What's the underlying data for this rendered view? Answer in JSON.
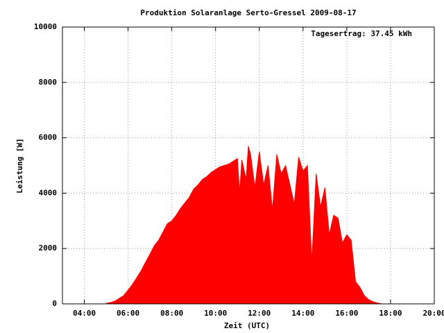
{
  "chart_data": {
    "type": "area",
    "title": "Produktion Solaranlage Serto-Gressel 2009-08-17",
    "annotation": "Tagesertrag: 37.45 kWh",
    "xlabel": "Zeit (UTC)",
    "ylabel": "Leistung [W]",
    "color": "#ff0000",
    "grid": true,
    "xlim": [
      3,
      20
    ],
    "ylim": [
      0,
      10000
    ],
    "xticks": [
      {
        "value": 4,
        "label": "04:00"
      },
      {
        "value": 6,
        "label": "06:00"
      },
      {
        "value": 8,
        "label": "08:00"
      },
      {
        "value": 10,
        "label": "10:00"
      },
      {
        "value": 12,
        "label": "12:00"
      },
      {
        "value": 14,
        "label": "14:00"
      },
      {
        "value": 16,
        "label": "16:00"
      },
      {
        "value": 18,
        "label": "18:00"
      },
      {
        "value": 20,
        "label": "20:00"
      }
    ],
    "yticks": [
      0,
      2000,
      4000,
      6000,
      8000,
      10000
    ],
    "x": [
      5.0,
      5.2,
      5.4,
      5.6,
      5.8,
      6.0,
      6.2,
      6.4,
      6.6,
      6.8,
      7.0,
      7.2,
      7.4,
      7.6,
      7.8,
      8.0,
      8.2,
      8.4,
      8.6,
      8.8,
      9.0,
      9.2,
      9.4,
      9.6,
      9.8,
      10.0,
      10.2,
      10.4,
      10.6,
      10.8,
      11.0,
      11.1,
      11.2,
      11.4,
      11.5,
      11.6,
      11.8,
      12.0,
      12.2,
      12.4,
      12.6,
      12.8,
      13.0,
      13.2,
      13.4,
      13.6,
      13.8,
      14.0,
      14.2,
      14.4,
      14.6,
      14.8,
      15.0,
      15.2,
      15.4,
      15.6,
      15.8,
      16.0,
      16.2,
      16.4,
      16.6,
      16.8,
      17.0,
      17.2,
      17.4,
      17.6
    ],
    "values": [
      20,
      50,
      100,
      200,
      300,
      500,
      700,
      950,
      1200,
      1500,
      1800,
      2100,
      2300,
      2600,
      2900,
      3000,
      3200,
      3450,
      3650,
      3850,
      4150,
      4300,
      4500,
      4600,
      4750,
      4850,
      4950,
      5000,
      5050,
      5150,
      5250,
      4000,
      5200,
      4500,
      5700,
      5400,
      4200,
      5500,
      4300,
      5000,
      3400,
      5400,
      4700,
      5000,
      4300,
      3600,
      5300,
      4800,
      5000,
      1500,
      4700,
      3500,
      4200,
      2500,
      3200,
      3100,
      2200,
      2500,
      2300,
      800,
      600,
      300,
      150,
      80,
      30,
      0
    ]
  }
}
